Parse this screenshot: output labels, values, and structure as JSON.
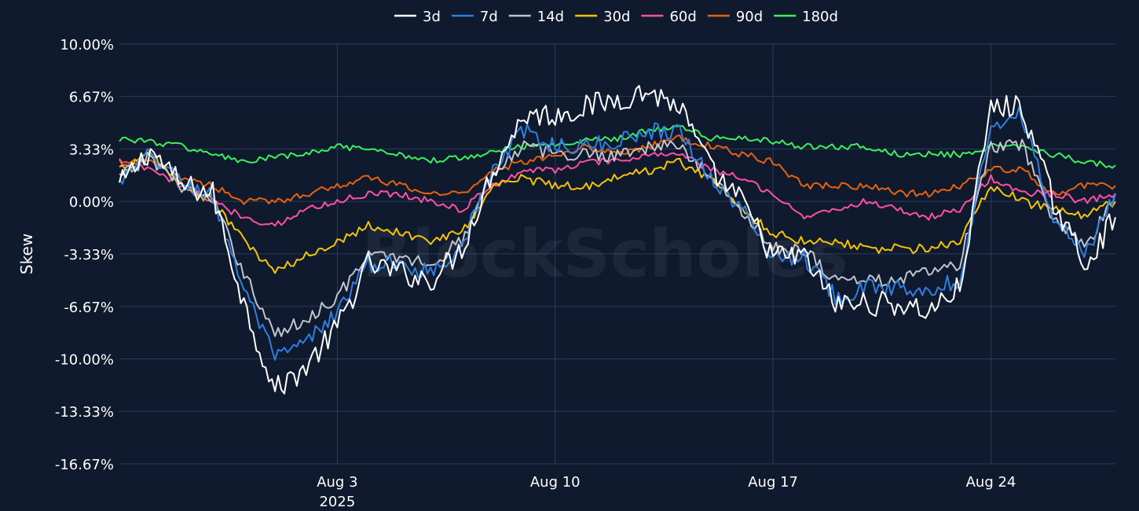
{
  "chart_data": {
    "type": "line",
    "title": "",
    "xlabel": "",
    "ylabel": "Skew",
    "y_unit": "%",
    "ylim": [
      -16.67,
      10.0
    ],
    "xlim": [
      "2025-07-27",
      "2025-08-28"
    ],
    "y_ticks": [
      "10.00%",
      "6.67%",
      "3.33%",
      "0.00%",
      "-3.33%",
      "-6.67%",
      "-10.00%",
      "-13.33%",
      "-16.67%"
    ],
    "y_tick_values": [
      10.0,
      6.67,
      3.33,
      0.0,
      -3.33,
      -6.67,
      -10.0,
      -13.33,
      -16.67
    ],
    "x_ticks": [
      {
        "date": "2025-08-03",
        "label": "Aug 3",
        "sublabel": "2025"
      },
      {
        "date": "2025-08-10",
        "label": "Aug 10",
        "sublabel": ""
      },
      {
        "date": "2025-08-17",
        "label": "Aug 17",
        "sublabel": ""
      },
      {
        "date": "2025-08-24",
        "label": "Aug 24",
        "sublabel": ""
      }
    ],
    "grid": true,
    "legend_position": "top-center",
    "watermark": "BlockScholes",
    "x": [
      "2025-07-27",
      "2025-07-28",
      "2025-07-29",
      "2025-07-30",
      "2025-07-31",
      "2025-08-01",
      "2025-08-02",
      "2025-08-03",
      "2025-08-04",
      "2025-08-05",
      "2025-08-06",
      "2025-08-07",
      "2025-08-08",
      "2025-08-09",
      "2025-08-10",
      "2025-08-11",
      "2025-08-12",
      "2025-08-13",
      "2025-08-14",
      "2025-08-15",
      "2025-08-16",
      "2025-08-17",
      "2025-08-18",
      "2025-08-19",
      "2025-08-20",
      "2025-08-21",
      "2025-08-22",
      "2025-08-23",
      "2025-08-24",
      "2025-08-25",
      "2025-08-26",
      "2025-08-27",
      "2025-08-28"
    ],
    "series": [
      {
        "name": "3d",
        "color": "#ffffff",
        "values": [
          1.0,
          3.3,
          1.0,
          0.5,
          -6.5,
          -12.0,
          -10.5,
          -8.0,
          -4.0,
          -4.5,
          -5.0,
          -3.0,
          2.0,
          5.5,
          5.5,
          6.0,
          6.5,
          7.0,
          6.0,
          2.0,
          0.0,
          -3.5,
          -3.5,
          -6.5,
          -6.5,
          -6.5,
          -7.0,
          -5.5,
          6.0,
          6.0,
          0.0,
          -4.0,
          -1.0
        ]
      },
      {
        "name": "7d",
        "color": "#2f7fe0",
        "values": [
          1.2,
          3.0,
          1.2,
          0.3,
          -5.5,
          -10.0,
          -9.0,
          -7.0,
          -4.0,
          -4.0,
          -4.5,
          -2.8,
          2.0,
          4.5,
          3.5,
          3.5,
          3.8,
          4.5,
          4.5,
          1.5,
          -0.5,
          -3.5,
          -3.5,
          -6.0,
          -5.5,
          -5.5,
          -5.5,
          -5.0,
          5.0,
          5.5,
          -1.0,
          -3.5,
          0.5
        ]
      },
      {
        "name": "14d",
        "color": "#c0c4cc",
        "values": [
          1.5,
          2.8,
          1.0,
          0.0,
          -4.5,
          -8.5,
          -7.5,
          -6.0,
          -3.5,
          -3.5,
          -4.0,
          -2.5,
          2.0,
          3.5,
          3.0,
          3.0,
          3.0,
          3.5,
          3.5,
          1.5,
          -0.5,
          -3.0,
          -3.0,
          -5.0,
          -5.0,
          -5.0,
          -4.5,
          -4.0,
          3.5,
          3.5,
          -1.0,
          -3.0,
          0.5
        ]
      },
      {
        "name": "30d",
        "color": "#f5c400",
        "values": [
          2.0,
          3.0,
          1.0,
          0.0,
          -2.5,
          -4.5,
          -3.5,
          -2.5,
          -1.5,
          -2.0,
          -2.5,
          -2.0,
          1.0,
          1.5,
          1.0,
          1.0,
          1.5,
          2.0,
          2.5,
          1.5,
          -0.5,
          -2.0,
          -2.5,
          -2.5,
          -3.0,
          -3.0,
          -3.0,
          -2.5,
          1.0,
          0.0,
          -0.5,
          -1.0,
          0.0
        ]
      },
      {
        "name": "60d",
        "color": "#ff4fa3",
        "values": [
          2.5,
          2.0,
          1.0,
          0.0,
          -1.0,
          -1.5,
          -0.5,
          0.0,
          0.5,
          0.5,
          0.0,
          -0.5,
          1.0,
          2.0,
          2.0,
          2.5,
          2.5,
          3.0,
          3.0,
          2.0,
          1.5,
          0.5,
          -1.0,
          -0.5,
          0.0,
          -0.5,
          -1.0,
          -0.5,
          1.5,
          0.5,
          0.5,
          0.0,
          0.5
        ]
      },
      {
        "name": "90d",
        "color": "#e8620c",
        "values": [
          2.5,
          2.5,
          1.5,
          1.0,
          0.0,
          0.0,
          0.5,
          1.0,
          1.5,
          1.0,
          0.5,
          0.5,
          2.0,
          2.5,
          3.0,
          3.5,
          3.0,
          3.5,
          4.0,
          3.5,
          3.0,
          2.5,
          1.0,
          1.0,
          1.0,
          0.5,
          0.5,
          1.0,
          2.0,
          2.0,
          0.5,
          1.0,
          1.0
        ]
      },
      {
        "name": "180d",
        "color": "#3cf05a",
        "values": [
          4.0,
          3.8,
          3.5,
          3.0,
          2.5,
          2.8,
          3.0,
          3.5,
          3.2,
          3.0,
          2.6,
          2.8,
          3.2,
          3.5,
          3.5,
          4.0,
          4.0,
          4.5,
          4.8,
          4.0,
          4.0,
          3.8,
          3.5,
          3.5,
          3.5,
          3.0,
          3.0,
          3.0,
          3.5,
          3.5,
          3.0,
          2.5,
          2.3
        ]
      }
    ]
  }
}
